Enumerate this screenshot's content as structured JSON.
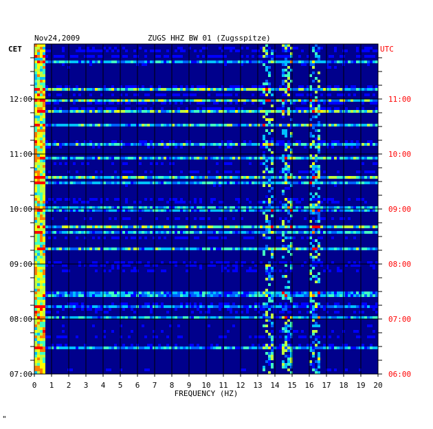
{
  "chart_data": {
    "type": "heatmap",
    "title_left": "Nov24,2009",
    "title_center": "ZUGS HHZ BW 01 (Zugsspitze)",
    "left_axis_label": "CET",
    "right_axis_label": "UTC",
    "xlabel": "FREQUENCY (HZ)",
    "xlim": [
      0,
      20
    ],
    "x_ticks": [
      "0",
      "1",
      "2",
      "3",
      "4",
      "5",
      "6",
      "7",
      "8",
      "9",
      "10",
      "11",
      "12",
      "13",
      "14",
      "15",
      "16",
      "17",
      "18",
      "19",
      "20"
    ],
    "y_ticks_cet": [
      "07:00",
      "08:00",
      "09:00",
      "10:00",
      "11:00",
      "12:00"
    ],
    "y_ticks_utc": [
      "06:00",
      "07:00",
      "08:00",
      "09:00",
      "10:00",
      "11:00"
    ],
    "time_range_cet": [
      "07:00",
      "13:00"
    ],
    "colormap": [
      "#00008c",
      "#0000ff",
      "#0060ff",
      "#00c0ff",
      "#40ffc0",
      "#c0ff40",
      "#ffff00",
      "#ff8000",
      "#ff0000"
    ],
    "colors": {
      "left_axis": "#000000",
      "right_axis": "#ff0000",
      "grid": "#000000",
      "background": "#00008c"
    },
    "energy_bands_hz": [
      0.3,
      13.5,
      14.7,
      16.2
    ],
    "grid": true,
    "corner_mark": "\""
  }
}
